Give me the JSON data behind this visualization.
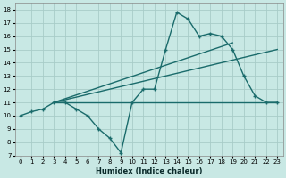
{
  "xlabel": "Humidex (Indice chaleur)",
  "xlim": [
    -0.5,
    23.5
  ],
  "ylim": [
    7,
    18.5
  ],
  "yticks": [
    7,
    8,
    9,
    10,
    11,
    12,
    13,
    14,
    15,
    16,
    17,
    18
  ],
  "xticks": [
    0,
    1,
    2,
    3,
    4,
    5,
    6,
    7,
    8,
    9,
    10,
    11,
    12,
    13,
    14,
    15,
    16,
    17,
    18,
    19,
    20,
    21,
    22,
    23
  ],
  "bg_color": "#c8e8e4",
  "line_color": "#1a6b6b",
  "grid_color": "#a8ccc8",
  "main_line": {
    "x": [
      0,
      1,
      2,
      3,
      4,
      5,
      6,
      7,
      8,
      9,
      10,
      11,
      12,
      13,
      14,
      15,
      16,
      17,
      18,
      19,
      20,
      21,
      22,
      23
    ],
    "y": [
      10,
      10.3,
      10.5,
      11,
      11,
      10.5,
      10,
      9,
      8.3,
      7.2,
      11,
      12,
      12,
      15,
      17.8,
      17.3,
      16,
      16.2,
      16,
      15,
      13,
      11.5,
      11,
      11
    ]
  },
  "regline1": {
    "x": [
      3,
      23
    ],
    "y": [
      11,
      11
    ]
  },
  "regline2": {
    "x": [
      3,
      19
    ],
    "y": [
      11,
      15.5
    ]
  },
  "regline3": {
    "x": [
      3,
      23
    ],
    "y": [
      11,
      15.0
    ]
  }
}
